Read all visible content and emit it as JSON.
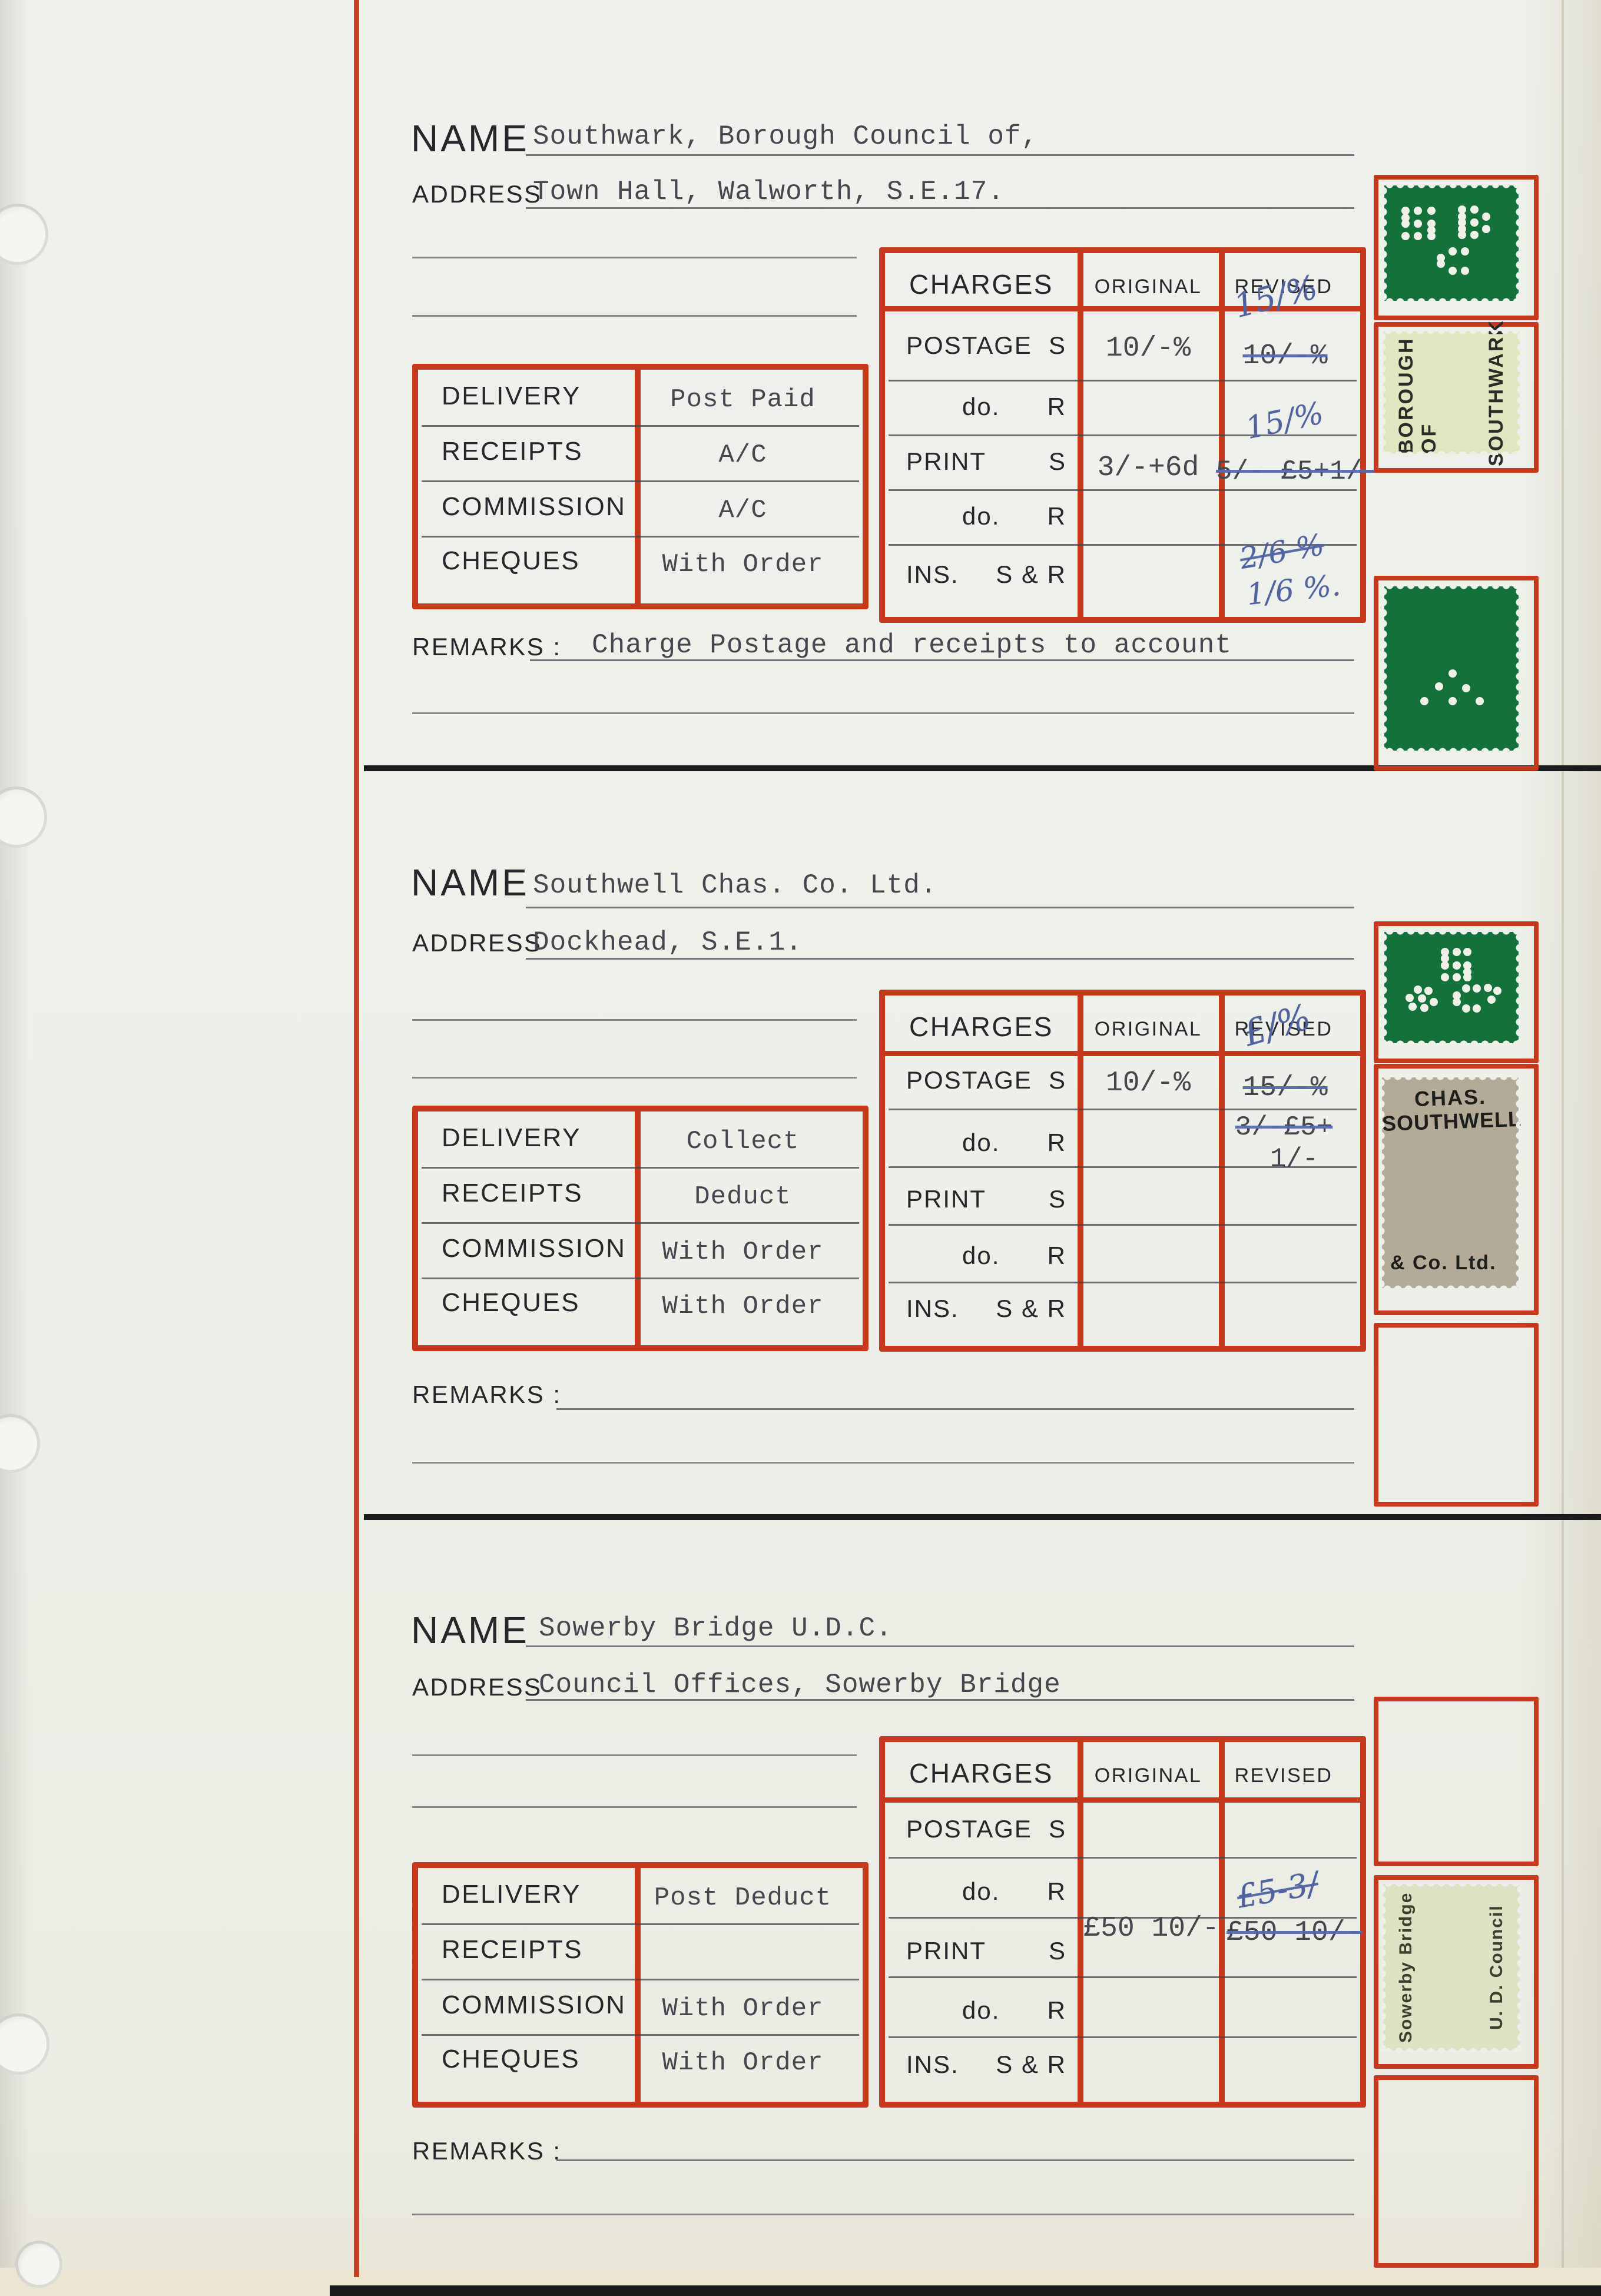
{
  "colors": {
    "paper": "#edefe9",
    "frame_red": "#c7391d",
    "stamp_green": "#15713a",
    "ink_blue": "#51639f",
    "type_ink": "#45464e",
    "print_black": "#26262b",
    "southwark_label": "#e2e6c0",
    "southwell_grey": "#b3ab98",
    "sowerby_label": "#dce3c2"
  },
  "labels": {
    "name": "NAME",
    "address": "ADDRESS",
    "remarks": "REMARKS :",
    "left_rows": [
      "DELIVERY",
      "RECEIPTS",
      "COMMISSION",
      "CHEQUES"
    ],
    "charges": "CHARGES",
    "original": "ORIGINAL",
    "revised": "REVISED",
    "charge_rows": [
      {
        "l": "POSTAGE",
        "r": "S"
      },
      {
        "l": "do.",
        "r": "R"
      },
      {
        "l": "PRINT",
        "r": "S"
      },
      {
        "l": "do.",
        "r": "R"
      },
      {
        "l": "INS.",
        "r": "S & R"
      }
    ]
  },
  "cards": [
    {
      "name": "Southwark, Borough Council of,",
      "address": "Town Hall, Walworth, S.E.17.",
      "delivery": "Post Paid",
      "receipts": "A/C",
      "commission": "A/C",
      "cheques": "With Order",
      "remarks": "Charge Postage and receipts to account",
      "charges": {
        "postage_original": "10/-%",
        "postage_revised_struck": "10/-%",
        "postage_revised_hand": "15/%",
        "print_original": "3/-+6d",
        "print_revised_struck": "5/- £5+1/-",
        "print_revised_hand": "15/%",
        "ins_revised_hand_struck": "2/6 %",
        "ins_revised_hand": "1/6 %."
      }
    },
    {
      "name": "Southwell Chas. Co. Ltd.",
      "address": "Dockhead, S.E.1.",
      "delivery": "Collect",
      "receipts": "Deduct",
      "commission": "With Order",
      "cheques": "With Order",
      "remarks": "",
      "charges": {
        "postage_original": "10/-%",
        "postage_revised_struck": "15/-%",
        "postage_revised_hand": "£/%",
        "print_revised_struck": "3/-£5+",
        "print_revised_line2": "1/-"
      }
    },
    {
      "name": "Sowerby Bridge U.D.C.",
      "address": "Council Offices, Sowerby Bridge",
      "delivery": "Post Deduct",
      "receipts": "",
      "commission": "With Order",
      "cheques": "With Order",
      "remarks": "",
      "charges": {
        "print_original": "£50 10/-",
        "print_revised_struck": "£50 10/-",
        "print_revised_hand": "£5-3/"
      }
    }
  ],
  "stamps": {
    "c1": {
      "label_left": "BOROUGH OF",
      "label_right": "SOUTHWARK"
    },
    "c2": {
      "line1": "CHAS.",
      "line2": "SOUTHWELL",
      "line3": "& Co. Ltd."
    },
    "c3": {
      "label_left": "Sowerby Bridge",
      "label_right": "U. D. Council"
    }
  },
  "perfins": {
    "c1": [
      [
        16,
        22
      ],
      [
        25,
        22
      ],
      [
        35,
        22
      ],
      [
        16,
        28
      ],
      [
        16,
        33
      ],
      [
        25,
        33
      ],
      [
        35,
        33
      ],
      [
        35,
        39
      ],
      [
        16,
        44
      ],
      [
        25,
        44
      ],
      [
        35,
        44
      ],
      [
        58,
        21
      ],
      [
        67,
        21
      ],
      [
        58,
        27
      ],
      [
        76,
        27
      ],
      [
        58,
        32
      ],
      [
        67,
        32
      ],
      [
        58,
        38
      ],
      [
        76,
        38
      ],
      [
        58,
        43
      ],
      [
        67,
        43
      ],
      [
        51,
        57
      ],
      [
        60,
        57
      ],
      [
        42,
        63
      ],
      [
        42,
        68
      ],
      [
        51,
        74
      ],
      [
        60,
        74
      ]
    ],
    "c1b": [
      [
        51,
        53
      ],
      [
        41,
        61
      ],
      [
        61,
        62
      ],
      [
        30,
        70
      ],
      [
        51,
        70
      ],
      [
        71,
        70
      ]
    ],
    "c2": [
      [
        45,
        18
      ],
      [
        54,
        18
      ],
      [
        62,
        18
      ],
      [
        45,
        24
      ],
      [
        45,
        30
      ],
      [
        54,
        30
      ],
      [
        62,
        30
      ],
      [
        62,
        36
      ],
      [
        45,
        41
      ],
      [
        54,
        41
      ],
      [
        62,
        41
      ],
      [
        25,
        52
      ],
      [
        33,
        53
      ],
      [
        19,
        59
      ],
      [
        28,
        60
      ],
      [
        21,
        67
      ],
      [
        30,
        68
      ],
      [
        37,
        63
      ],
      [
        61,
        51
      ],
      [
        69,
        51
      ],
      [
        54,
        57
      ],
      [
        54,
        63
      ],
      [
        61,
        69
      ],
      [
        69,
        69
      ],
      [
        77,
        50
      ],
      [
        84,
        53
      ],
      [
        80,
        61
      ]
    ]
  }
}
